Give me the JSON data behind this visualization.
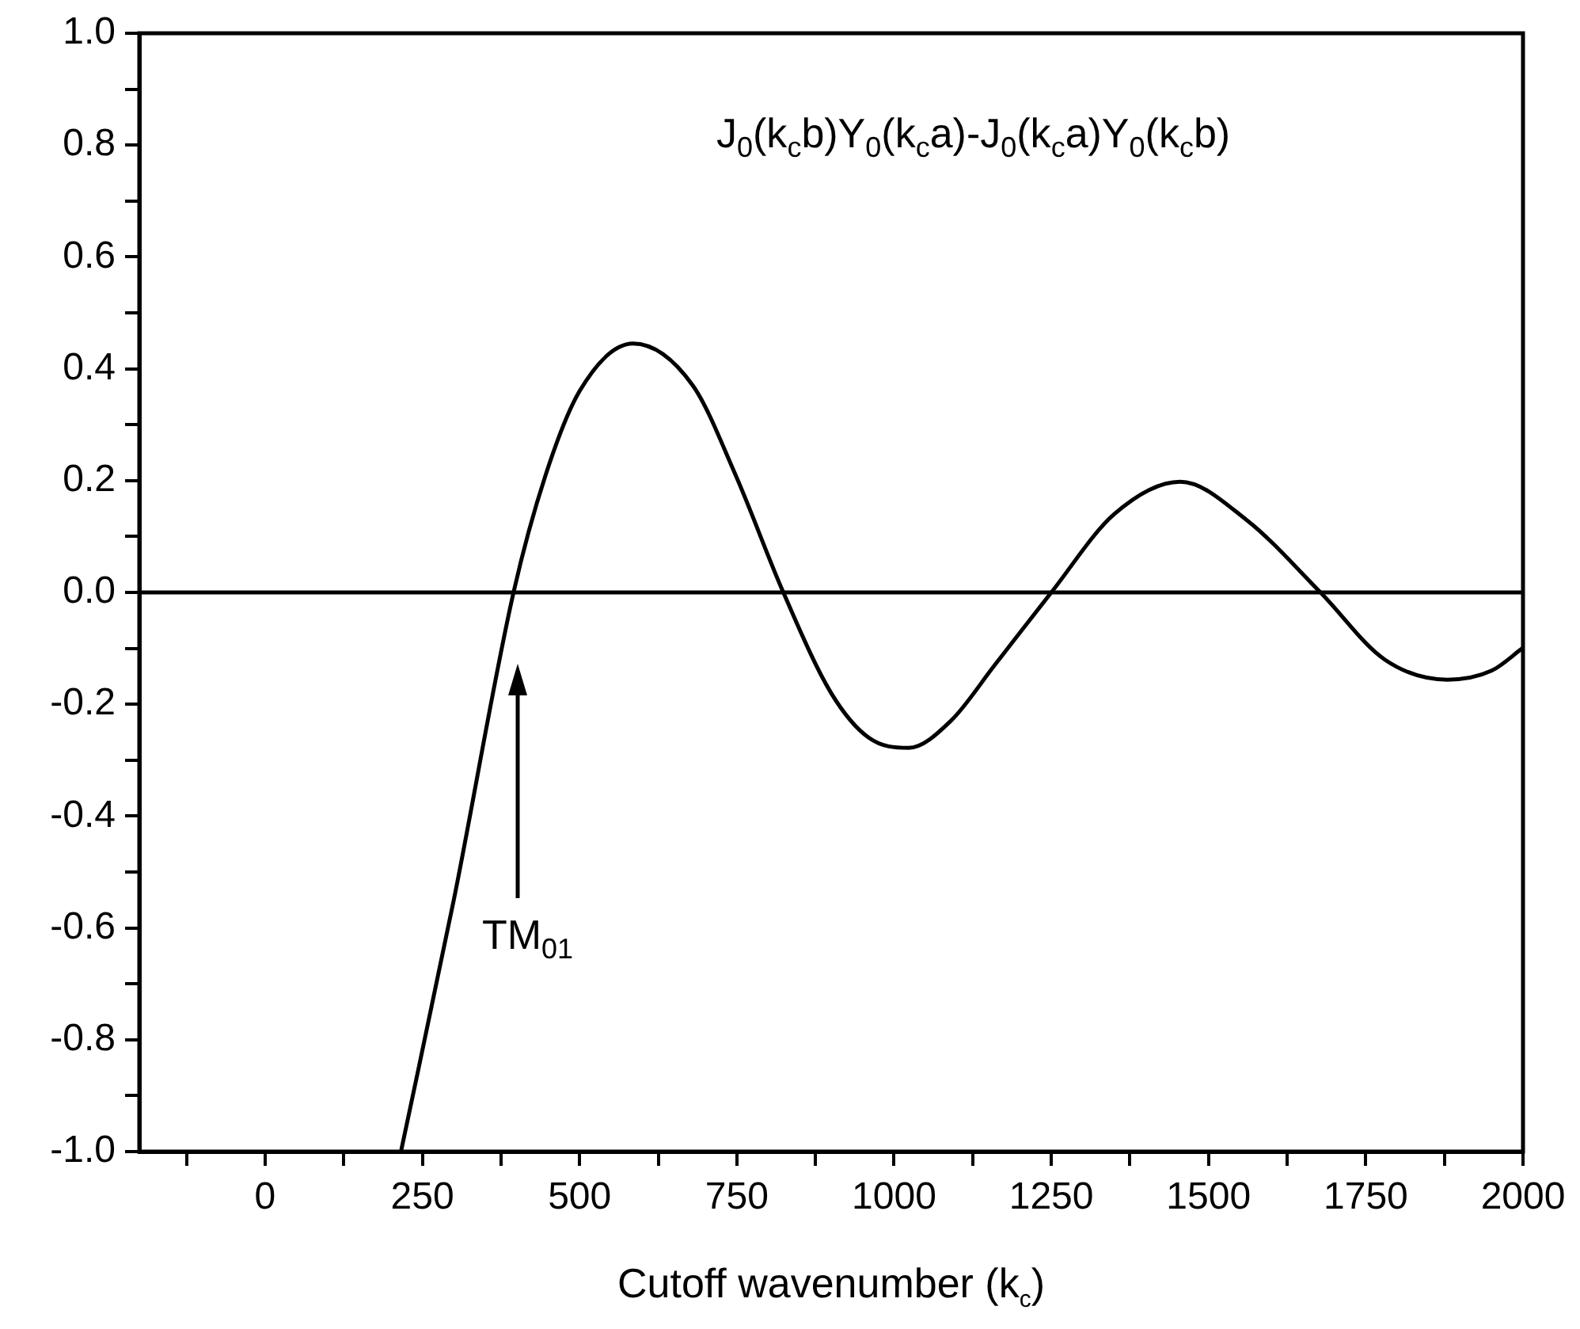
{
  "chart_data": {
    "type": "line",
    "xlabel": "Cutoff wavenumber (k$_{c}$)",
    "x": [
      216,
      300,
      395,
      446,
      500,
      585,
      680,
      748,
      824,
      900,
      960,
      1023,
      1090,
      1160,
      1250,
      1350,
      1455,
      1560,
      1678,
      1780,
      1880,
      1950,
      2000
    ],
    "series": [
      {
        "color": "#000000",
        "values": [
          -1.0,
          -0.55,
          0.0,
          0.21,
          0.36,
          0.445,
          0.37,
          0.21,
          0.0,
          -0.18,
          -0.26,
          -0.278,
          -0.23,
          -0.13,
          0.0,
          0.14,
          0.198,
          0.13,
          0.0,
          -0.12,
          -0.156,
          -0.14,
          -0.099
        ]
      }
    ],
    "xlim": [
      -200,
      2000
    ],
    "xticks": [
      {
        "value": -125,
        "label": null
      },
      0,
      {
        "value": 125,
        "label": null
      },
      250,
      {
        "value": 375,
        "label": null
      },
      500,
      {
        "value": 625,
        "label": null
      },
      750,
      {
        "value": 875,
        "label": null
      },
      1000,
      {
        "value": 1125,
        "label": null
      },
      1250,
      {
        "value": 1375,
        "label": null
      },
      1500,
      {
        "value": 1625,
        "label": null
      },
      1750,
      {
        "value": 1875,
        "label": null
      },
      2000
    ],
    "ylim": [
      -1.0,
      1.0
    ],
    "yticks": [
      {
        "value": -1,
        "label": "-1.0"
      },
      {
        "value": -0.9,
        "label": null
      },
      {
        "value": -0.8,
        "label": "-0.8"
      },
      {
        "value": -0.7,
        "label": null
      },
      {
        "value": -0.6,
        "label": "-0.6"
      },
      {
        "value": -0.5,
        "label": null
      },
      {
        "value": -0.4,
        "label": "-0.4"
      },
      {
        "value": -0.3,
        "label": null
      },
      {
        "value": -0.2,
        "label": "-0.2"
      },
      {
        "value": -0.1,
        "label": null
      },
      {
        "value": 0,
        "label": "0.0"
      },
      {
        "value": 0.1,
        "label": null
      },
      {
        "value": 0.2,
        "label": "0.2"
      },
      {
        "value": 0.3,
        "label": null
      },
      {
        "value": 0.4,
        "label": "0.4"
      },
      {
        "value": 0.5,
        "label": null
      },
      {
        "value": 0.6,
        "label": "0.6"
      },
      {
        "value": 0.7,
        "label": null
      },
      {
        "value": 0.8,
        "label": "0.8"
      },
      {
        "value": 0.9,
        "label": null
      },
      {
        "value": 1,
        "label": "1.0"
      }
    ],
    "ref_lines": [
      {
        "axis": "y",
        "value": 0,
        "color": "#000000"
      }
    ],
    "annotations": [
      "J$_{0}$(k$_{c}$b)Y$_{0}$(k$_{c}$a)-J$_{0}$(k$_{c}$a)Y$_{0}$(k$_{c}$b)",
      "TM$_{01}$"
    ],
    "grid": false,
    "legend": false,
    "marker": "none",
    "line_style": "solid"
  }
}
